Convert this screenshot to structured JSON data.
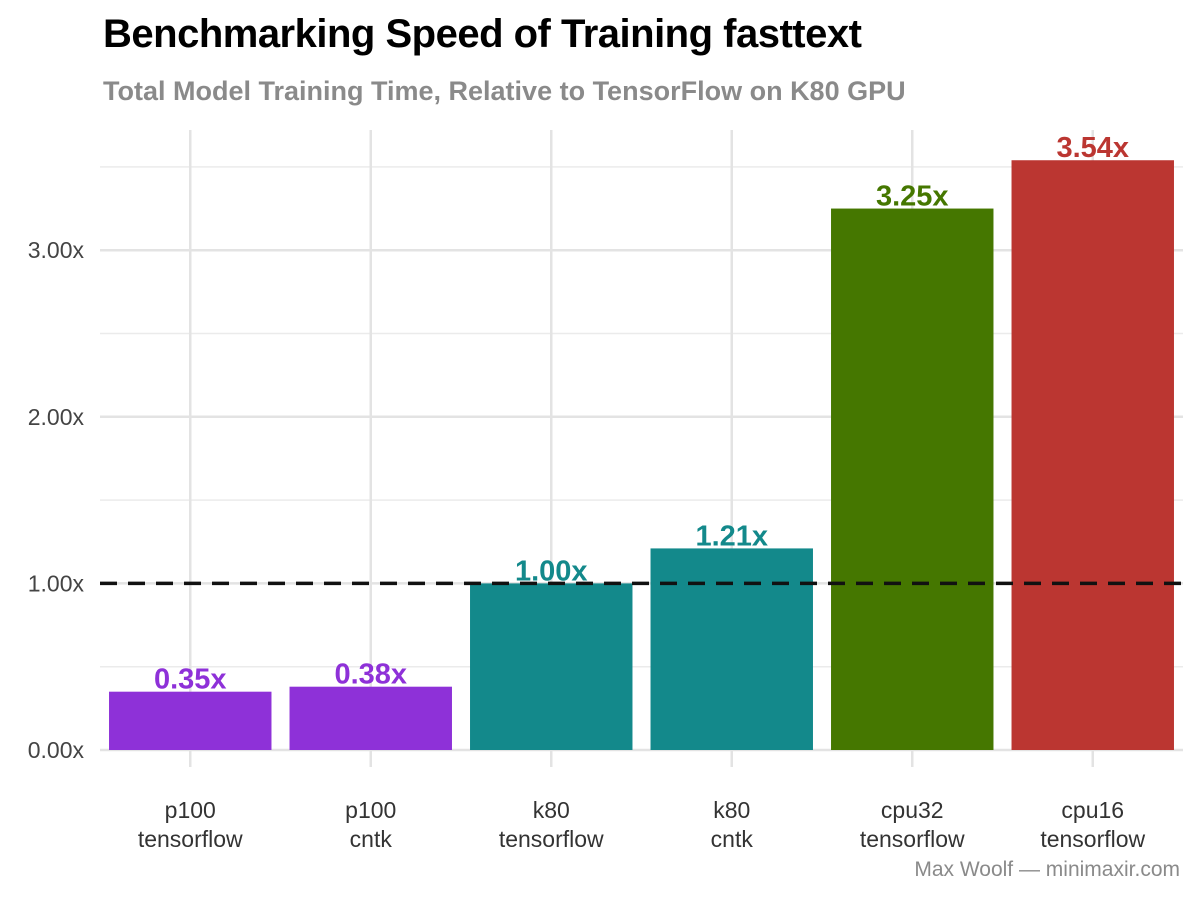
{
  "chart_data": {
    "type": "bar",
    "title": "Benchmarking Speed of Training fasttext",
    "subtitle": "Total Model Training Time, Relative to TensorFlow on K80 GPU",
    "categories": [
      [
        "p100",
        "tensorflow"
      ],
      [
        "p100",
        "cntk"
      ],
      [
        "k80",
        "tensorflow"
      ],
      [
        "k80",
        "cntk"
      ],
      [
        "cpu32",
        "tensorflow"
      ],
      [
        "cpu16",
        "tensorflow"
      ]
    ],
    "values": [
      0.35,
      0.38,
      1.0,
      1.21,
      3.25,
      3.54
    ],
    "data_labels": [
      "0.35x",
      "0.38x",
      "1.00x",
      "1.21x",
      "3.25x",
      "3.54x"
    ],
    "colors": [
      "#8e31d8",
      "#8e31d8",
      "#13898b",
      "#13898b",
      "#457700",
      "#bb3631"
    ],
    "xlabel": "",
    "ylabel": "",
    "ylim": [
      0,
      3.54
    ],
    "y_ticks": [
      0,
      1,
      2,
      3
    ],
    "y_tick_labels": [
      "0.00x",
      "1.00x",
      "2.00x",
      "3.00x"
    ],
    "reference_line": 1.0,
    "grid": true,
    "legend": "none"
  },
  "credit": "Max Woolf — minimaxir.com"
}
